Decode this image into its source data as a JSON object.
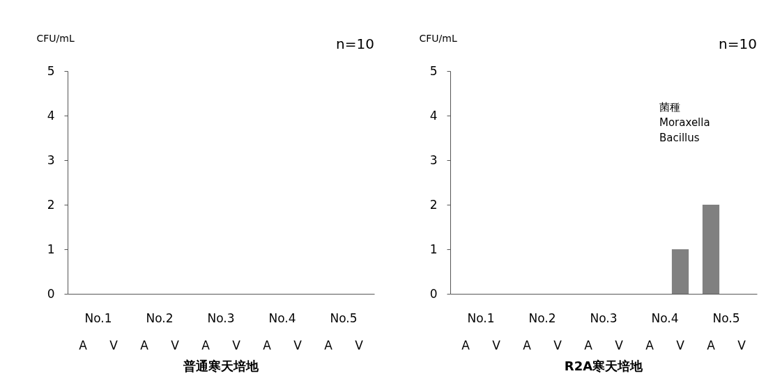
{
  "chart_data": [
    {
      "type": "bar",
      "title": "普通寒天培地",
      "ylabel": "CFU/mL",
      "categories": [
        "A",
        "V",
        "A",
        "V",
        "A",
        "V",
        "A",
        "V",
        "A",
        "V"
      ],
      "values": [
        0,
        0,
        0,
        0,
        0,
        0,
        0,
        0,
        0,
        0
      ],
      "color": "#808080",
      "ylim": [
        0,
        5
      ],
      "yticks": [
        0,
        1,
        2,
        3,
        4,
        5
      ],
      "grid": false,
      "annotations": [
        "n=10",
        "No.1",
        "No.2",
        "No.3",
        "No.4",
        "No.5"
      ]
    },
    {
      "type": "bar",
      "title": "R2A寒天培地",
      "ylabel": "CFU/mL",
      "categories": [
        "A",
        "V",
        "A",
        "V",
        "A",
        "V",
        "A",
        "V",
        "A",
        "V"
      ],
      "values": [
        0,
        0,
        0,
        0,
        0,
        0,
        0,
        1,
        2,
        0
      ],
      "color": "#808080",
      "ylim": [
        0,
        5
      ],
      "yticks": [
        0,
        1,
        2,
        3,
        4,
        5
      ],
      "grid": false,
      "annotations": [
        "n=10",
        "No.1",
        "No.2",
        "No.3",
        "No.4",
        "No.5",
        "菌種",
        "Moraxella",
        "Bacillus"
      ]
    }
  ]
}
